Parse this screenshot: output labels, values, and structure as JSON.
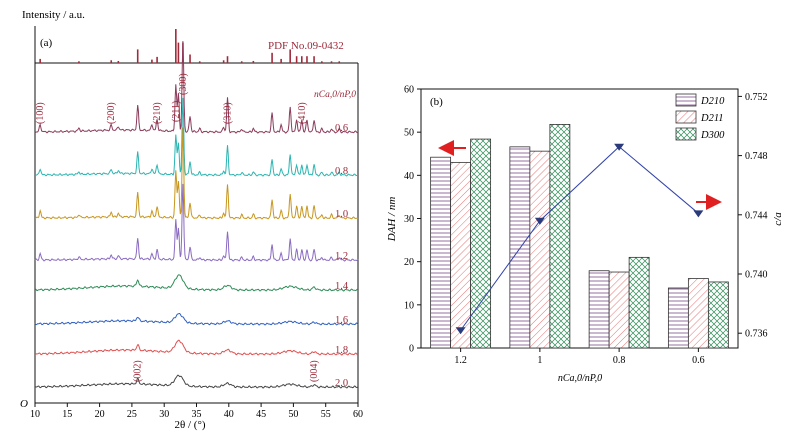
{
  "chart_data": [
    {
      "panel": "(a)",
      "type": "line",
      "ylabel": "Intensity / a.u.",
      "xlabel": "2θ / (°)",
      "origin_label": "O",
      "xlim": [
        10,
        60
      ],
      "xticks": [
        10,
        15,
        20,
        25,
        30,
        35,
        40,
        45,
        50,
        55,
        60
      ],
      "reference": {
        "name": "PDF No.09-0432",
        "lines": [
          {
            "x": 10.8,
            "h": 0.12
          },
          {
            "x": 16.8,
            "h": 0.05
          },
          {
            "x": 21.8,
            "h": 0.08
          },
          {
            "x": 22.9,
            "h": 0.06
          },
          {
            "x": 25.9,
            "h": 0.4
          },
          {
            "x": 28.1,
            "h": 0.1
          },
          {
            "x": 28.9,
            "h": 0.18
          },
          {
            "x": 31.8,
            "h": 1.0
          },
          {
            "x": 32.2,
            "h": 0.6
          },
          {
            "x": 32.9,
            "h": 0.6
          },
          {
            "x": 34.0,
            "h": 0.25
          },
          {
            "x": 35.5,
            "h": 0.05
          },
          {
            "x": 39.2,
            "h": 0.08
          },
          {
            "x": 39.8,
            "h": 0.2
          },
          {
            "x": 42.0,
            "h": 0.05
          },
          {
            "x": 43.8,
            "h": 0.06
          },
          {
            "x": 46.7,
            "h": 0.3
          },
          {
            "x": 48.1,
            "h": 0.12
          },
          {
            "x": 49.5,
            "h": 0.4
          },
          {
            "x": 50.5,
            "h": 0.2
          },
          {
            "x": 51.3,
            "h": 0.2
          },
          {
            "x": 52.1,
            "h": 0.2
          },
          {
            "x": 53.2,
            "h": 0.2
          },
          {
            "x": 54.4,
            "h": 0.05
          },
          {
            "x": 55.9,
            "h": 0.05
          },
          {
            "x": 57.1,
            "h": 0.05
          }
        ]
      },
      "ratio_label": "nCa,0/nP,0",
      "peak_labels_top": [
        {
          "label": "(100)",
          "x": 10.8
        },
        {
          "label": "(200)",
          "x": 21.8
        },
        {
          "label": "(210)",
          "x": 28.9
        },
        {
          "label": "(211)",
          "x": 31.8
        },
        {
          "label": "(300)",
          "x": 32.9
        },
        {
          "label": "(310)",
          "x": 39.8
        },
        {
          "label": "(410)",
          "x": 51.3
        }
      ],
      "peak_labels_bottom": [
        {
          "label": "(002)",
          "x": 25.9
        },
        {
          "label": "(004)",
          "x": 53.2
        }
      ],
      "series": [
        {
          "name": "0.6",
          "color": "#8b3a5a",
          "crystalline": true,
          "peak_scale": 1.0,
          "baseline": 0.05
        },
        {
          "name": "0.8",
          "color": "#2bb5b2",
          "crystalline": true,
          "peak_scale": 0.85,
          "baseline": 0.04
        },
        {
          "name": "1.0",
          "color": "#c8961e",
          "crystalline": true,
          "peak_scale": 1.0,
          "baseline": 0.03
        },
        {
          "name": "1.2",
          "color": "#8a6bc2",
          "crystalline": true,
          "peak_scale": 0.85,
          "baseline": 0.03
        },
        {
          "name": "1.4",
          "color": "#2e8b57",
          "crystalline": false,
          "peak_scale": 0.45,
          "baseline": 0.1
        },
        {
          "name": "1.6",
          "color": "#3060c0",
          "crystalline": false,
          "peak_scale": 0.3,
          "baseline": 0.08
        },
        {
          "name": "1.8",
          "color": "#e05050",
          "crystalline": false,
          "peak_scale": 0.4,
          "baseline": 0.1
        },
        {
          "name": "2.0",
          "color": "#444444",
          "crystalline": false,
          "peak_scale": 0.35,
          "baseline": 0.08
        }
      ]
    },
    {
      "panel": "(b)",
      "type": "bar",
      "categories": [
        "1.2",
        "1",
        "0.8",
        "0.6"
      ],
      "xlabel": "nCa,0/nP,0",
      "ylabel": "DAH / nm",
      "ylim": [
        0,
        60
      ],
      "yticks": [
        0,
        10,
        20,
        30,
        40,
        50,
        60
      ],
      "y2label": "c/a",
      "y2lim": [
        0.735,
        0.7525
      ],
      "y2ticks": [
        "0.736",
        "0.740",
        "0.744",
        "0.748",
        "0.752"
      ],
      "series": [
        {
          "name": "D210",
          "pattern": "hlines",
          "color": "#7a4a8a",
          "values": [
            44.2,
            46.6,
            17.9,
            13.9
          ]
        },
        {
          "name": "D211",
          "pattern": "diag",
          "color": "#e05050",
          "values": [
            43.0,
            45.6,
            17.6,
            16.1
          ]
        },
        {
          "name": "D300",
          "pattern": "cross",
          "color": "#2e8b57",
          "values": [
            48.4,
            51.8,
            21.0,
            15.3
          ]
        }
      ],
      "ratio_series": {
        "name": "c/a",
        "color": "#3344aa",
        "values": [
          0.7362,
          0.7436,
          0.7486,
          0.7441
        ]
      },
      "arrows": [
        {
          "direction": "left",
          "color": "#e02020"
        },
        {
          "direction": "right",
          "color": "#e02020"
        }
      ],
      "legend_position": "top-right"
    }
  ]
}
